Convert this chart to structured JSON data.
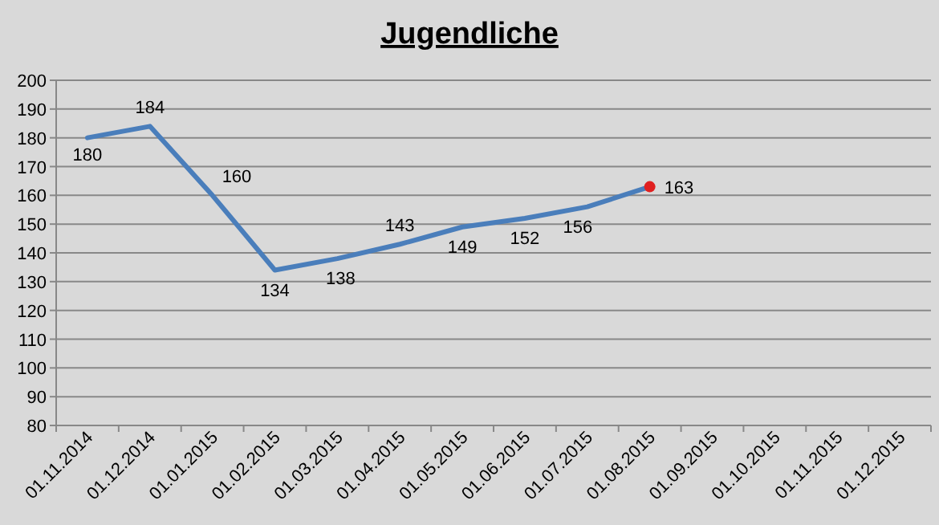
{
  "chart_data": {
    "type": "line",
    "title": "Jugendliche",
    "categories": [
      "01.11.2014",
      "01.12.2014",
      "01.01.2015",
      "01.02.2015",
      "01.03.2015",
      "01.04.2015",
      "01.05.2015",
      "01.06.2015",
      "01.07.2015",
      "01.08.2015",
      "01.09.2015",
      "01.10.2015",
      "01.11.2015",
      "01.12.2015"
    ],
    "series": [
      {
        "color": "#4a7ebb",
        "marker": "none",
        "value_labels": [
          "180",
          "184",
          "160",
          "134",
          "138",
          "143",
          "149",
          "152",
          "156",
          "163",
          null,
          null,
          null,
          null
        ],
        "values": [
          180,
          184,
          160,
          134,
          138,
          143,
          149,
          152,
          156,
          163,
          null,
          null,
          null,
          null
        ]
      },
      {
        "type": "scatter",
        "marker": "circle",
        "color": "#e02020",
        "values": [
          null,
          null,
          null,
          null,
          null,
          null,
          null,
          null,
          null,
          163,
          null,
          null,
          null,
          null
        ]
      }
    ],
    "ylim": [
      80,
      200
    ],
    "yticks": [
      80,
      90,
      100,
      110,
      120,
      130,
      140,
      150,
      160,
      170,
      180,
      190,
      200
    ],
    "grid": "y"
  }
}
